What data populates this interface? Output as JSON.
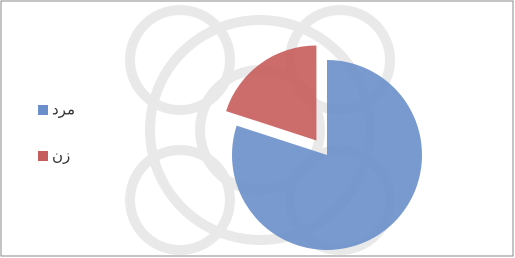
{
  "chart_data": {
    "type": "pie",
    "categories": [
      "مرد",
      "زن"
    ],
    "values": [
      80,
      20
    ],
    "colors": [
      "#6a8fca",
      "#c65c5b"
    ],
    "explode": [
      0,
      1
    ],
    "legend": "left"
  }
}
